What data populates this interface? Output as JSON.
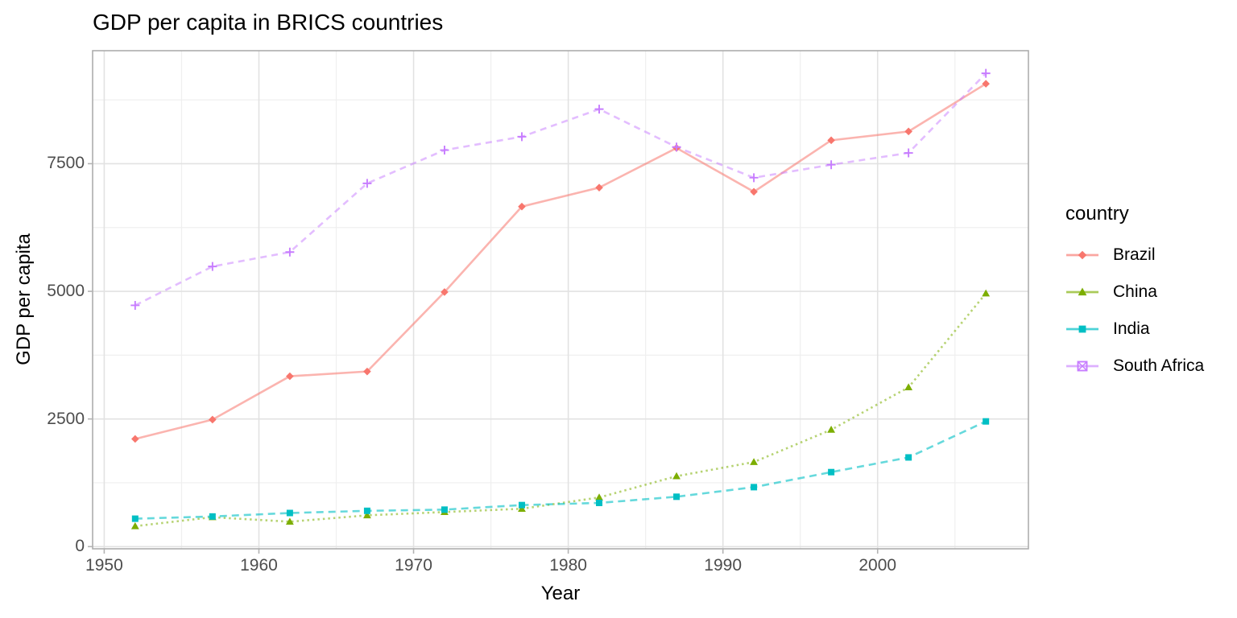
{
  "title": "GDP per capita in BRICS countries",
  "legend": {
    "title": "country"
  },
  "colors": {
    "panel_border": "#adadad",
    "grid_major": "#e2e2e2",
    "grid_minor": "#efefef",
    "tick_mark": "#b3b3b3",
    "tick_label": "#4d4d4d",
    "text": "#000000"
  },
  "chart_data": {
    "type": "line",
    "title": "GDP per capita in BRICS countries",
    "xlabel": "Year",
    "ylabel": "GDP per capita",
    "x": [
      1952,
      1957,
      1962,
      1967,
      1972,
      1977,
      1982,
      1987,
      1992,
      1997,
      2002,
      2007
    ],
    "series": [
      {
        "name": "Brazil",
        "color": "#F8766D",
        "line_alpha": 0.55,
        "linetype": "solid",
        "marker": "diamond",
        "legend_marker": "diamond",
        "values": [
          2108.9,
          2487.4,
          3336.6,
          3429.9,
          4985.7,
          6660.1,
          7030.8,
          7807.1,
          6950.3,
          7958.0,
          8131.2,
          9065.8
        ]
      },
      {
        "name": "China",
        "color": "#7CAE00",
        "line_alpha": 0.55,
        "linetype": "dotted",
        "marker": "triangle",
        "legend_marker": "triangle",
        "values": [
          400.4,
          576.0,
          487.7,
          612.7,
          676.9,
          741.2,
          962.4,
          1378.9,
          1655.8,
          2289.2,
          3119.3,
          4959.1
        ]
      },
      {
        "name": "India",
        "color": "#00BFC4",
        "line_alpha": 0.6,
        "linetype": "dashed",
        "marker": "square",
        "legend_marker": "square",
        "values": [
          546.6,
          590.1,
          658.3,
          700.8,
          724.0,
          813.3,
          855.7,
          976.5,
          1164.4,
          1458.8,
          1746.8,
          2452.2
        ]
      },
      {
        "name": "South Africa",
        "color": "#C77CFF",
        "line_alpha": 0.5,
        "linetype": "longdash",
        "marker": "plus",
        "legend_marker": "square-x",
        "values": [
          4725.3,
          5487.1,
          5768.7,
          7114.5,
          7765.9,
          8028.7,
          8568.3,
          7825.8,
          7225.1,
          7479.2,
          7710.9,
          9269.7
        ]
      }
    ],
    "x_domain": [
      1949.25,
      2009.75
    ],
    "y_domain": [
      -43,
      9713
    ],
    "x_ticks": [
      1950,
      1960,
      1970,
      1980,
      1990,
      2000
    ],
    "y_ticks": [
      0,
      2500,
      5000,
      7500
    ],
    "x_minor": [
      1955,
      1965,
      1975,
      1985,
      1995,
      2005
    ],
    "y_minor": [
      1250,
      3750,
      6250,
      8750
    ],
    "grid": true,
    "legend_position": "right"
  }
}
